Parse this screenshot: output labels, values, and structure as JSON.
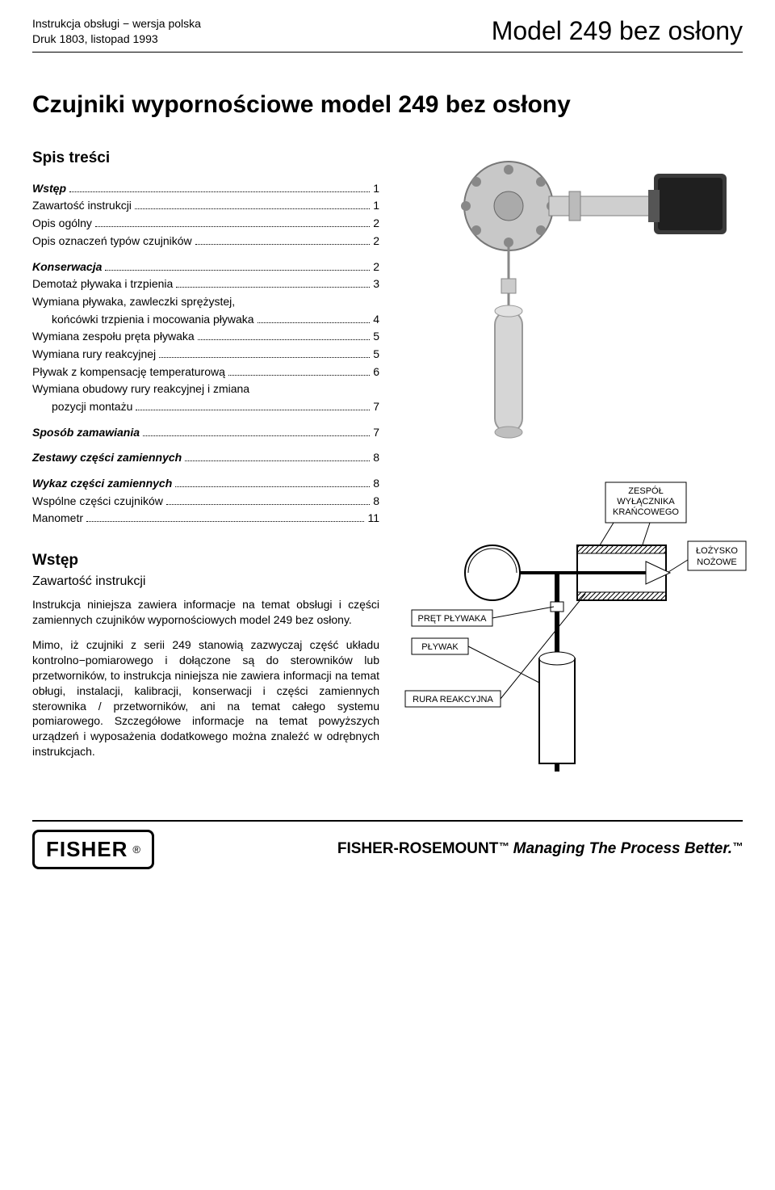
{
  "header": {
    "line1": "Instrukcja obsługi − wersja polska",
    "line2": "Druk 1803, listopad 1993",
    "model": "Model 249 bez osłony"
  },
  "title": "Czujniki wypornościowe model 249 bez osłony",
  "toc": {
    "heading": "Spis treści",
    "sections": [
      {
        "bold": true,
        "label": "Wstęp",
        "page": "1",
        "children": [
          {
            "label": "Zawartość instrukcji",
            "page": "1"
          },
          {
            "label": "Opis ogólny",
            "page": "2"
          },
          {
            "label": "Opis oznaczeń typów czujników",
            "page": "2"
          }
        ]
      },
      {
        "bold": true,
        "label": "Konserwacja",
        "page": "2",
        "children": [
          {
            "label": "Demotaż pływaka i trzpienia",
            "page": "3"
          },
          {
            "label": "Wymiana pływaka, zawleczki sprężystej,",
            "cont": "końcówki trzpienia i mocowania pływaka",
            "page": "4"
          },
          {
            "label": "Wymiana zespołu pręta pływaka",
            "page": "5"
          },
          {
            "label": "Wymiana rury reakcyjnej",
            "page": "5"
          },
          {
            "label": "Pływak z kompensację temperaturową",
            "page": "6"
          },
          {
            "label": "Wymiana obudowy rury reakcyjnej i zmiana",
            "cont": "pozycji montażu",
            "page": "7"
          }
        ]
      },
      {
        "bold": true,
        "label": "Sposób zamawiania",
        "page": "7",
        "children": []
      },
      {
        "bold": true,
        "label": "Zestawy części zamiennych",
        "page": "8",
        "children": []
      },
      {
        "bold": true,
        "label": "Wykaz części zamiennych",
        "page": "8",
        "children": [
          {
            "label": "Wspólne części czujników",
            "page": "8"
          },
          {
            "label": "Manometr",
            "page": "11"
          }
        ]
      }
    ]
  },
  "intro": {
    "heading": "Wstęp",
    "subheading": "Zawartość instrukcji",
    "p1": "Instrukcja niniejsza zawiera informacje na temat obsługi i części zamiennych czujników wypornościowych model 249 bez osłony.",
    "p2": "Mimo, iż czujniki z serii 249 stanowią zazwyczaj część układu kontrolno−pomiarowego i dołączone są do sterowników lub przetworników, to instrukcja niniejsza nie zawiera informacji na temat obługi, instalacji, kalibracji, konserwacji i części zamiennych sterownika / przetworników, ani na temat całego systemu pomiarowego. Szczegółowe informacje na temat powyższych urządzeń i wyposażenia dodatkowego można znaleźć w odrębnych instrukcjach."
  },
  "fig2_labels": {
    "l1": "ZESPÓŁ",
    "l2": "WYŁĄCZNIKA",
    "l3": "KRAŃCOWEGO",
    "l4": "ŁOŻYSKO",
    "l5": "NOŻOWE",
    "l6": "PRĘT PŁYWAKA",
    "l7": "PŁYWAK",
    "l8": "RURA REAKCYJNA"
  },
  "footer": {
    "logo": "FISHER",
    "reg": "®",
    "brand": "FISHER-ROSEMOUNT",
    "tm": "™",
    "tag": "Managing The Process Better.",
    "tm2": "™"
  },
  "colors": {
    "text": "#000000",
    "bg": "#ffffff",
    "rule": "#000000",
    "photo_gray": "#b8b8b8",
    "diagram_line": "#000000"
  }
}
